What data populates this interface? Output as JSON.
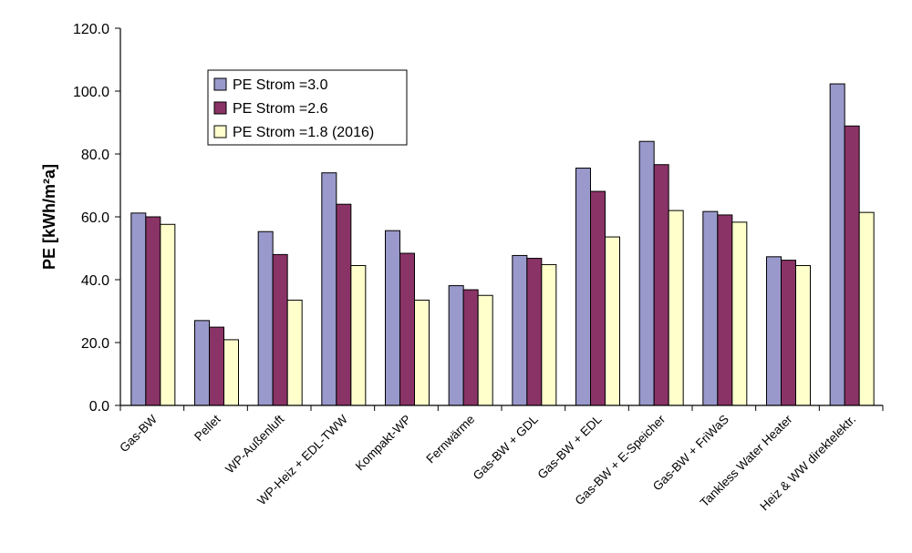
{
  "chart_data": {
    "type": "bar",
    "ylabel": "PE [kWh/m²a]",
    "xlabel": "",
    "ylim": [
      0,
      120
    ],
    "y_ticks": [
      "0.0",
      "20.0",
      "40.0",
      "60.0",
      "80.0",
      "100.0",
      "120.0"
    ],
    "grid": false,
    "legend_position": "top-left",
    "categories": [
      "Gas-BW",
      "Pellet",
      "WP-Außenluft",
      "WP-Heiz + EDL-TWW",
      "Kompakt-WP",
      "Fernwärme",
      "Gas-BW + GDL",
      "Gas-BW + EDL",
      "Gas-BW + E-Speicher",
      "Gas-BW + FriWaS",
      "Tankless Water Heater",
      "Heiz & WW direktelektr."
    ],
    "series": [
      {
        "name": "PE Strom =3.0",
        "color": "#9999cc",
        "values": [
          61.2,
          27.0,
          55.3,
          74.0,
          55.6,
          38.1,
          47.7,
          75.5,
          84.0,
          61.7,
          47.3,
          102.3
        ]
      },
      {
        "name": "PE Strom =2.6",
        "color": "#8a3366",
        "values": [
          60.0,
          24.9,
          48.0,
          64.0,
          48.4,
          36.8,
          46.8,
          68.1,
          76.6,
          60.6,
          46.2,
          88.9
        ]
      },
      {
        "name": "PE Strom =1.8 (2016)",
        "color": "#ffffcc",
        "values": [
          57.6,
          20.9,
          33.5,
          44.5,
          33.5,
          35.0,
          44.8,
          53.6,
          62.0,
          58.3,
          44.5,
          61.4
        ]
      }
    ]
  }
}
